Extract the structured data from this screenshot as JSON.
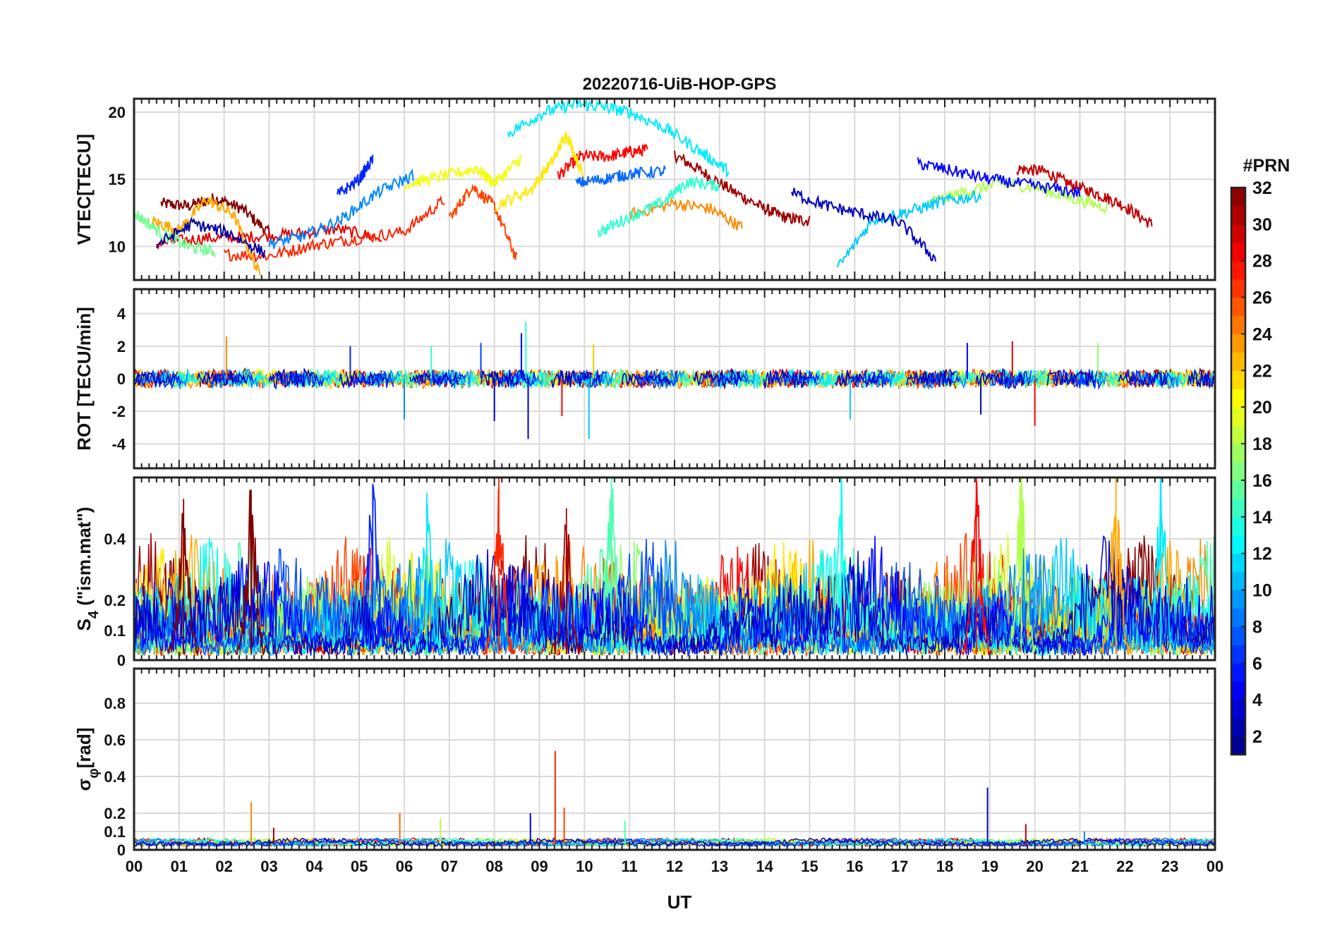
{
  "figure": {
    "title": "20220716-UiB-HOP-GPS",
    "xlabel": "UT",
    "x_ticks": [
      "00",
      "01",
      "02",
      "03",
      "04",
      "05",
      "06",
      "07",
      "08",
      "09",
      "10",
      "11",
      "12",
      "13",
      "14",
      "15",
      "16",
      "17",
      "18",
      "19",
      "20",
      "21",
      "22",
      "23",
      "00"
    ],
    "colorbar": {
      "label": "#PRN",
      "ticks": [
        "32",
        "30",
        "28",
        "26",
        "24",
        "22",
        "20",
        "18",
        "16",
        "14",
        "12",
        "10",
        "8",
        "6",
        "4",
        "2"
      ],
      "range": [
        1,
        32
      ],
      "colormap": "jet"
    }
  },
  "chart_data": [
    {
      "type": "line",
      "panel": "vtec",
      "ylabel": "VTEC[TECU]",
      "ylim": [
        7.5,
        21
      ],
      "y_ticks": [
        "20",
        "15",
        "10"
      ],
      "y_tick_values": [
        20,
        15,
        10
      ],
      "xlim": [
        0,
        24
      ],
      "grid": true,
      "series_color_by": "PRN",
      "series": [
        {
          "prn": 32,
          "x": [
            0.6,
            1.2,
            1.8,
            2.4,
            3.0
          ],
          "y": [
            13.2,
            13.0,
            13.6,
            12.8,
            11.0
          ]
        },
        {
          "prn": 31,
          "x": [
            12.0,
            12.6,
            13.3,
            14.0,
            14.5,
            15.0
          ],
          "y": [
            16.8,
            15.6,
            14.1,
            12.8,
            12.1,
            11.9
          ]
        },
        {
          "prn": 30,
          "x": [
            19.6,
            20.2,
            20.8,
            21.4,
            22.0,
            22.6
          ],
          "y": [
            15.8,
            15.6,
            14.6,
            13.9,
            13.0,
            11.6
          ]
        },
        {
          "prn": 29,
          "x": [
            0.5,
            1.5,
            2.5,
            3.5,
            4.5,
            5.5
          ],
          "y": [
            10.2,
            10.6,
            10.7,
            10.9,
            11.3,
            10.6
          ]
        },
        {
          "prn": 28,
          "x": [
            9.4,
            9.9,
            10.5,
            11.0,
            11.4
          ],
          "y": [
            15.2,
            16.7,
            16.7,
            17.0,
            17.2
          ]
        },
        {
          "prn": 27,
          "x": [
            2.0,
            3.0,
            4.0,
            5.0,
            6.0,
            6.9
          ],
          "y": [
            9.4,
            9.3,
            10.1,
            10.6,
            11.1,
            13.5
          ]
        },
        {
          "prn": 26,
          "x": [
            7.0,
            7.5,
            8.0,
            8.5
          ],
          "y": [
            12.0,
            14.5,
            13.0,
            9.0
          ]
        },
        {
          "prn": 24,
          "x": [
            11.0,
            12.0,
            12.8,
            13.5
          ],
          "y": [
            12.4,
            13.2,
            12.8,
            11.4
          ]
        },
        {
          "prn": 23,
          "x": [
            0.4,
            1.0,
            1.6,
            2.2,
            2.8
          ],
          "y": [
            11.9,
            11.2,
            13.5,
            12.4,
            7.8
          ]
        },
        {
          "prn": 21,
          "x": [
            8.0,
            8.8,
            9.3,
            9.6,
            10.0
          ],
          "y": [
            13.0,
            14.2,
            16.4,
            18.4,
            15.0
          ]
        },
        {
          "prn": 20,
          "x": [
            6.0,
            6.8,
            7.6,
            8.0,
            8.6
          ],
          "y": [
            14.6,
            15.2,
            15.8,
            14.7,
            16.6
          ]
        },
        {
          "prn": 18,
          "x": [
            17.6,
            18.4,
            19.2,
            20.0,
            20.8,
            21.6
          ],
          "y": [
            13.2,
            14.0,
            14.7,
            14.4,
            13.6,
            12.9
          ]
        },
        {
          "prn": 16,
          "x": [
            0.0,
            0.6,
            1.2,
            1.8
          ],
          "y": [
            12.5,
            11.0,
            10.0,
            9.6
          ]
        },
        {
          "prn": 14,
          "x": [
            10.3,
            11.0,
            11.7,
            12.3,
            13.0
          ],
          "y": [
            11.0,
            12.2,
            13.2,
            14.8,
            14.5
          ]
        },
        {
          "prn": 12,
          "x": [
            8.3,
            9.1,
            9.8,
            10.4,
            11.0,
            11.8,
            12.6,
            13.2
          ],
          "y": [
            18.4,
            20.0,
            20.6,
            20.4,
            20.0,
            18.8,
            17.0,
            15.6
          ]
        },
        {
          "prn": 11,
          "x": [
            15.6,
            16.4,
            17.2,
            18.0,
            18.8
          ],
          "y": [
            8.3,
            12.0,
            12.6,
            13.4,
            13.8
          ]
        },
        {
          "prn": 9,
          "x": [
            3.0,
            3.8,
            4.6,
            5.4,
            6.2
          ],
          "y": [
            10.2,
            10.8,
            12.0,
            14.0,
            15.3
          ]
        },
        {
          "prn": 8,
          "x": [
            9.8,
            10.4,
            11.0,
            11.8
          ],
          "y": [
            14.7,
            15.0,
            15.4,
            15.6
          ]
        },
        {
          "prn": 6,
          "x": [
            4.5,
            5.0,
            5.3
          ],
          "y": [
            13.8,
            15.0,
            16.5
          ]
        },
        {
          "prn": 5,
          "x": [
            17.4,
            18.2,
            19.0,
            20.0,
            21.0
          ],
          "y": [
            16.2,
            15.6,
            15.0,
            14.5,
            14.0
          ]
        },
        {
          "prn": 3,
          "x": [
            14.6,
            15.4,
            16.2,
            17.0,
            17.8
          ],
          "y": [
            14.0,
            13.0,
            12.4,
            11.8,
            9.0
          ]
        },
        {
          "prn": 2,
          "x": [
            0.5,
            1.3,
            2.1,
            2.9
          ],
          "y": [
            10.1,
            11.7,
            11.0,
            9.5
          ]
        }
      ]
    },
    {
      "type": "line",
      "panel": "rot",
      "ylabel": "ROT [TECU/min]",
      "ylim": [
        -5.5,
        5.5
      ],
      "y_ticks": [
        "4",
        "2",
        "0",
        "-2",
        "-4"
      ],
      "y_tick_values": [
        4,
        2,
        0,
        -2,
        -4
      ],
      "xlim": [
        0,
        24
      ],
      "grid": true,
      "series_color_by": "PRN",
      "spikes": [
        {
          "x": 2.05,
          "y": 2.6,
          "prn": 24
        },
        {
          "x": 4.8,
          "y": 2.0,
          "prn": 6
        },
        {
          "x": 6.0,
          "y": -2.5,
          "prn": 9
        },
        {
          "x": 6.6,
          "y": 2.0,
          "prn": 14
        },
        {
          "x": 7.7,
          "y": 2.2,
          "prn": 7
        },
        {
          "x": 8.0,
          "y": -2.6,
          "prn": 3
        },
        {
          "x": 8.7,
          "y": 3.5,
          "prn": 14
        },
        {
          "x": 8.75,
          "y": -3.7,
          "prn": 3
        },
        {
          "x": 8.6,
          "y": 2.8,
          "prn": 5
        },
        {
          "x": 9.5,
          "y": -2.3,
          "prn": 28
        },
        {
          "x": 10.1,
          "y": -3.7,
          "prn": 11
        },
        {
          "x": 10.2,
          "y": 2.1,
          "prn": 22
        },
        {
          "x": 15.9,
          "y": -2.5,
          "prn": 11
        },
        {
          "x": 18.5,
          "y": 2.2,
          "prn": 5
        },
        {
          "x": 18.8,
          "y": -2.2,
          "prn": 3
        },
        {
          "x": 19.5,
          "y": 2.3,
          "prn": 29
        },
        {
          "x": 20.0,
          "y": -2.9,
          "prn": 28
        },
        {
          "x": 21.4,
          "y": 2.2,
          "prn": 17
        }
      ]
    },
    {
      "type": "line",
      "panel": "s4",
      "ylabel": "S4 (\"ism.mat\")",
      "ylabel_main": "S",
      "ylabel_sub": "4",
      "ylabel_rest": " (\"ism.mat\")",
      "ylim": [
        0,
        0.6
      ],
      "y_ticks": [
        "0.4",
        "0.2",
        "0.1",
        "0"
      ],
      "y_tick_values": [
        0.4,
        0.2,
        0.1,
        0
      ],
      "y_scale": "piecewise",
      "xlim": [
        0,
        24
      ],
      "grid": true,
      "series_color_by": "PRN",
      "peaks": [
        {
          "x": 1.1,
          "y": 0.53,
          "prn": 32
        },
        {
          "x": 2.6,
          "y": 0.56,
          "prn": 32
        },
        {
          "x": 5.3,
          "y": 0.58,
          "prn": 6
        },
        {
          "x": 6.5,
          "y": 0.55,
          "prn": 12
        },
        {
          "x": 8.1,
          "y": 0.6,
          "prn": 27
        },
        {
          "x": 9.6,
          "y": 0.5,
          "prn": 31
        },
        {
          "x": 10.6,
          "y": 0.6,
          "prn": 15
        },
        {
          "x": 15.7,
          "y": 0.6,
          "prn": 13
        },
        {
          "x": 18.7,
          "y": 0.6,
          "prn": 28
        },
        {
          "x": 19.7,
          "y": 0.6,
          "prn": 18
        },
        {
          "x": 21.8,
          "y": 0.6,
          "prn": 23
        },
        {
          "x": 22.8,
          "y": 0.6,
          "prn": 12
        }
      ]
    },
    {
      "type": "line",
      "panel": "sigma_phi",
      "ylabel": "σφ[rad]",
      "ylabel_main": "σ",
      "ylabel_sub": "φ",
      "ylabel_rest": "[rad]",
      "ylim": [
        0,
        1
      ],
      "y_ticks": [
        "0.8",
        "0.6",
        "0.4",
        "0.2",
        "0.1",
        "0"
      ],
      "y_tick_values": [
        0.8,
        0.6,
        0.4,
        0.2,
        0.1,
        0
      ],
      "y_scale": "piecewise",
      "xlim": [
        0,
        24
      ],
      "grid": true,
      "series_color_by": "PRN",
      "peaks": [
        {
          "x": 2.6,
          "y": 0.26,
          "prn": 24
        },
        {
          "x": 3.1,
          "y": 0.12,
          "prn": 31
        },
        {
          "x": 5.9,
          "y": 0.2,
          "prn": 25
        },
        {
          "x": 6.8,
          "y": 0.17,
          "prn": 18
        },
        {
          "x": 8.8,
          "y": 0.2,
          "prn": 4
        },
        {
          "x": 9.35,
          "y": 0.54,
          "prn": 27
        },
        {
          "x": 9.55,
          "y": 0.23,
          "prn": 26
        },
        {
          "x": 10.9,
          "y": 0.16,
          "prn": 15
        },
        {
          "x": 18.95,
          "y": 0.34,
          "prn": 3
        },
        {
          "x": 19.8,
          "y": 0.14,
          "prn": 30
        },
        {
          "x": 21.1,
          "y": 0.1,
          "prn": 9
        }
      ]
    }
  ]
}
